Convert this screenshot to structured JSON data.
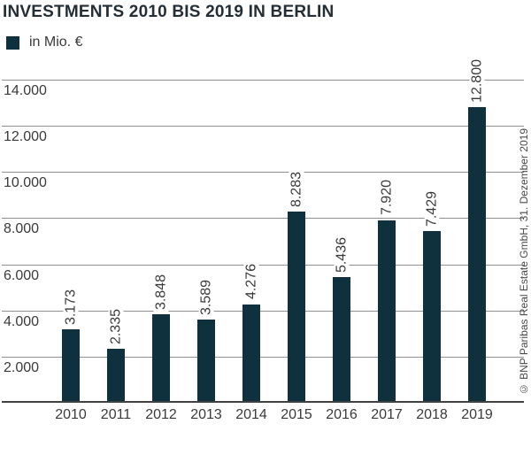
{
  "title": "INVESTMENTS 2010 BIS 2019 IN BERLIN",
  "legend": {
    "label": "in Mio. €"
  },
  "copyright": "© BNP Paribas Real Estate GmbH, 31. Dezember 2019",
  "colors": {
    "bar": "#0e313d",
    "gridline": "#8f8f8f",
    "axis_line": "#414141",
    "text": "#3a3a3a",
    "title": "#242e36"
  },
  "chart_data": {
    "type": "bar",
    "title": "INVESTMENTS 2010 BIS 2019 IN BERLIN",
    "categories": [
      "2010",
      "2011",
      "2012",
      "2013",
      "2014",
      "2015",
      "2016",
      "2017",
      "2018",
      "2019"
    ],
    "values": [
      3173,
      2335,
      3848,
      3589,
      4276,
      8283,
      5436,
      7920,
      7429,
      12800
    ],
    "value_labels": [
      "3.173",
      "2.335",
      "3.848",
      "3.589",
      "4.276",
      "8.283",
      "5.436",
      "7.920",
      "7.429",
      "12.800"
    ],
    "xlabel": "",
    "ylabel": "in Mio. €",
    "ylim": [
      0,
      14000
    ],
    "yticks": [
      2000,
      4000,
      6000,
      8000,
      10000,
      12000,
      14000
    ],
    "ytick_labels": [
      "2.000",
      "4.000",
      "6.000",
      "8.000",
      "10.000",
      "12.000",
      "14.000"
    ],
    "grid": true,
    "legend_position": "top-left",
    "value_label_rotation": 90,
    "number_format": "de-DE thousands separator dot"
  }
}
